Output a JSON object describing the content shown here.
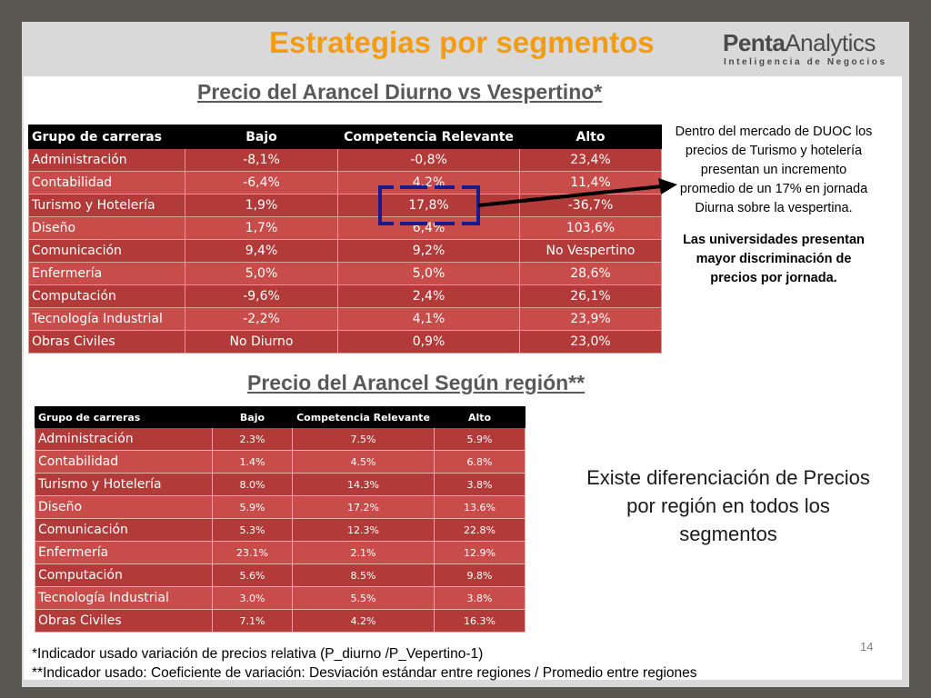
{
  "slide": {
    "title": "Estrategias por segmentos",
    "page_number": "14"
  },
  "logo": {
    "name_bold": "Penta",
    "name_regular": "Analytics",
    "tagline": "Inteligencia de Negocios"
  },
  "section1": {
    "title": "Precio del Arancel Diurno vs Vespertino*",
    "headers": [
      "Grupo de carreras",
      "Bajo",
      "Competencia Relevante",
      "Alto"
    ],
    "rows": [
      [
        "Administración",
        "-8,1%",
        "-0,8%",
        "23,4%"
      ],
      [
        "Contabilidad",
        "-6,4%",
        "4,2%",
        "11,4%"
      ],
      [
        "Turismo y Hotelería",
        "1,9%",
        "17,8%",
        "-36,7%"
      ],
      [
        "Diseño",
        "1,7%",
        "6,4%",
        "103,6%"
      ],
      [
        "Comunicación",
        "9,4%",
        "9,2%",
        "No Vespertino"
      ],
      [
        "Enfermería",
        "5,0%",
        "5,0%",
        "28,6%"
      ],
      [
        "Computación",
        "-9,6%",
        "2,4%",
        "26,1%"
      ],
      [
        "Tecnología Industrial",
        "-2,2%",
        "4,1%",
        "23,9%"
      ],
      [
        "Obras Civiles",
        "No Diurno",
        "0,9%",
        "23,0%"
      ]
    ],
    "note_text": "Dentro del mercado de DUOC los precios de Turismo y hotelería presentan un incremento promedio de un 17% en jornada Diurna sobre la vespertina.",
    "note_bold": "Las universidades presentan mayor discriminación de precios por jornada."
  },
  "section2": {
    "title": "Precio del Arancel Según región**",
    "headers": [
      "Grupo de carreras",
      "Bajo",
      "Competencia Relevante",
      "Alto"
    ],
    "rows": [
      [
        "Administración",
        "2.3%",
        "7.5%",
        "5.9%"
      ],
      [
        "Contabilidad",
        "1.4%",
        "4.5%",
        "6.8%"
      ],
      [
        "Turismo y Hotelería",
        "8.0%",
        "14.3%",
        "3.8%"
      ],
      [
        "Diseño",
        "5.9%",
        "17.2%",
        "13.6%"
      ],
      [
        "Comunicación",
        "5.3%",
        "12.3%",
        "22.8%"
      ],
      [
        "Enfermería",
        "23.1%",
        "2.1%",
        "12.9%"
      ],
      [
        "Computación",
        "5.6%",
        "8.5%",
        "9.8%"
      ],
      [
        "Tecnología Industrial",
        "3.0%",
        "5.5%",
        "3.8%"
      ],
      [
        "Obras Civiles",
        "7.1%",
        "4.2%",
        "16.3%"
      ]
    ],
    "note_text": "Existe diferenciación de Precios por región en todos los segmentos"
  },
  "footnotes": {
    "fn1": "*Indicador usado variación de precios relativa (P_diurno /P_Vepertino-1)",
    "fn2": "**Indicador usado: Coeficiente de variación: Desviación estándar entre regiones / Promedio entre regiones"
  },
  "colors": {
    "title": "#f39c12",
    "row_dark": "#b23a38",
    "row_light": "#c84d4a",
    "highlight_bracket": "#1a1a8c",
    "arrow": "#000000"
  }
}
